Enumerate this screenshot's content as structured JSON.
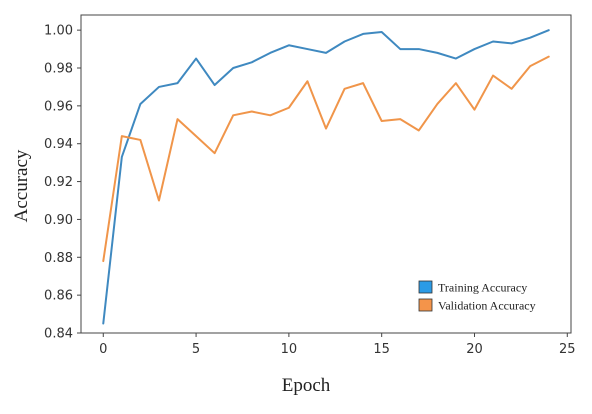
{
  "chart_data": {
    "type": "line",
    "xlabel": "Epoch",
    "ylabel": "Accuracy",
    "xlim": [
      -1.2,
      25.2
    ],
    "ylim": [
      0.84,
      1.008
    ],
    "xticks": [
      0,
      5,
      10,
      15,
      20,
      25
    ],
    "yticks": [
      0.84,
      0.86,
      0.88,
      0.9,
      0.92,
      0.94,
      0.96,
      0.98,
      1.0
    ],
    "xtick_labels": [
      "0",
      "5",
      "10",
      "15",
      "20",
      "25"
    ],
    "ytick_labels": [
      "0.84",
      "0.86",
      "0.88",
      "0.90",
      "0.92",
      "0.94",
      "0.96",
      "0.98",
      "1.00"
    ],
    "grid": false,
    "legend_position": "bottom-right",
    "x": [
      0,
      1,
      2,
      3,
      4,
      5,
      6,
      7,
      8,
      9,
      10,
      11,
      12,
      13,
      14,
      15,
      16,
      17,
      18,
      19,
      20,
      21,
      22,
      23,
      24
    ],
    "series": [
      {
        "name": "Training Accuracy",
        "color": "#3f89c0",
        "legend_color": "#2b9be6",
        "values": [
          0.845,
          0.933,
          0.961,
          0.97,
          0.972,
          0.985,
          0.971,
          0.98,
          0.983,
          0.988,
          0.992,
          0.99,
          0.988,
          0.994,
          0.998,
          0.999,
          0.99,
          0.99,
          0.988,
          0.985,
          0.99,
          0.994,
          0.993,
          0.996,
          1.0
        ]
      },
      {
        "name": "Validation Accuracy",
        "color": "#f0954a",
        "legend_color": "#f4944a",
        "values": [
          0.878,
          0.944,
          0.942,
          0.91,
          0.953,
          0.944,
          0.935,
          0.955,
          0.957,
          0.955,
          0.959,
          0.973,
          0.948,
          0.969,
          0.972,
          0.952,
          0.953,
          0.947,
          0.961,
          0.972,
          0.958,
          0.976,
          0.969,
          0.981,
          0.986
        ]
      }
    ]
  }
}
